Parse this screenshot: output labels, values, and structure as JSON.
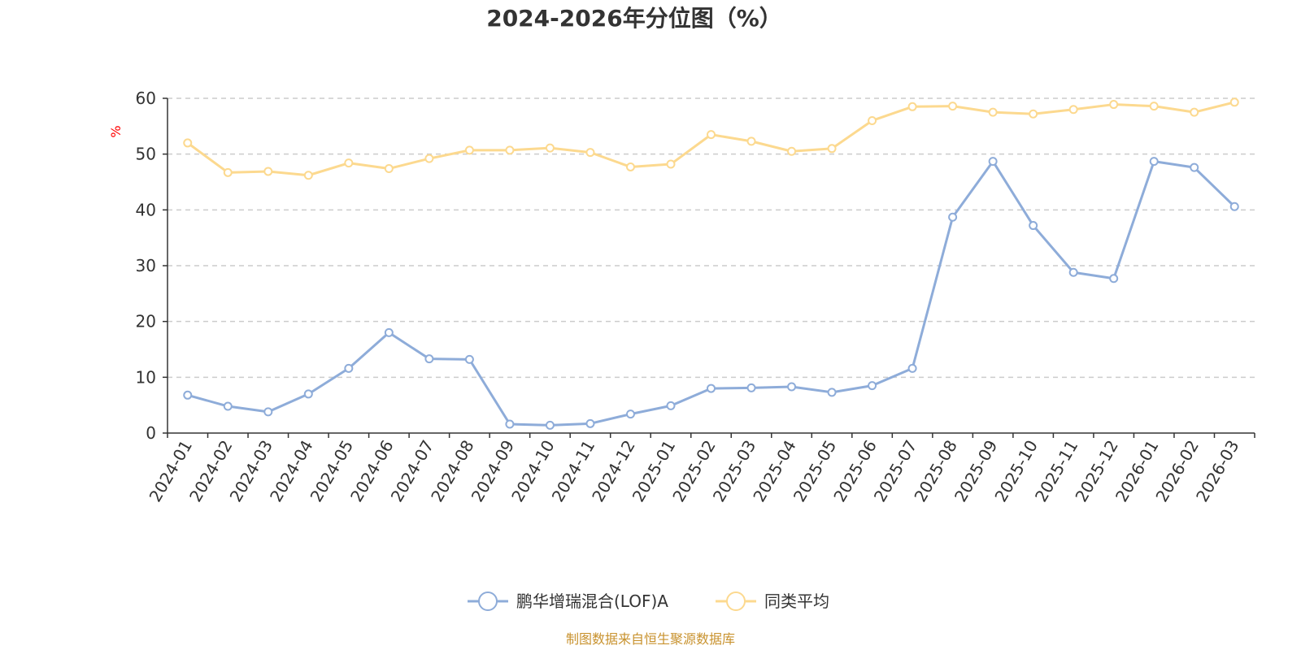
{
  "chart_data": {
    "type": "line",
    "title": "2024-2026年分位图（%）",
    "ylabel": "%",
    "ylim": [
      0,
      60
    ],
    "yticks": [
      "0",
      "10",
      "20",
      "30",
      "40",
      "50",
      "60"
    ],
    "grid": "horizontal dashed",
    "legend_position": "bottom-center",
    "x": [
      "2024-01",
      "2024-02",
      "2024-03",
      "2024-04",
      "2024-05",
      "2024-06",
      "2024-07",
      "2024-08",
      "2024-09",
      "2024-10",
      "2024-11",
      "2024-12",
      "2025-01",
      "2025-02",
      "2025-03",
      "2025-04",
      "2025-05",
      "2025-06",
      "2025-07",
      "2025-08",
      "2025-09",
      "2025-10",
      "2025-11",
      "2025-12",
      "2026-01",
      "2026-02",
      "2026-03"
    ],
    "series": [
      {
        "name": "鹏华增瑞混合(LOF)A",
        "color": "#8eacd9",
        "values": [
          6.8,
          4.8,
          3.8,
          7.0,
          11.6,
          18.0,
          13.3,
          13.2,
          1.6,
          1.4,
          1.7,
          3.4,
          4.9,
          8.0,
          8.1,
          8.3,
          7.3,
          8.5,
          11.6,
          38.7,
          48.7,
          37.2,
          28.8,
          27.7,
          48.7,
          47.6,
          40.6
        ]
      },
      {
        "name": "同类平均",
        "color": "#fcd98f",
        "values": [
          52.0,
          46.7,
          46.9,
          46.2,
          48.4,
          47.4,
          49.2,
          50.7,
          50.7,
          51.1,
          50.3,
          47.7,
          48.2,
          53.5,
          52.3,
          50.5,
          51.0,
          56.0,
          58.5,
          58.6,
          57.5,
          57.2,
          58.0,
          58.9,
          58.6,
          57.5,
          59.3
        ]
      }
    ]
  },
  "footer": {
    "source_text": "制图数据来自恒生聚源数据库",
    "source_color": "#c8922e"
  }
}
